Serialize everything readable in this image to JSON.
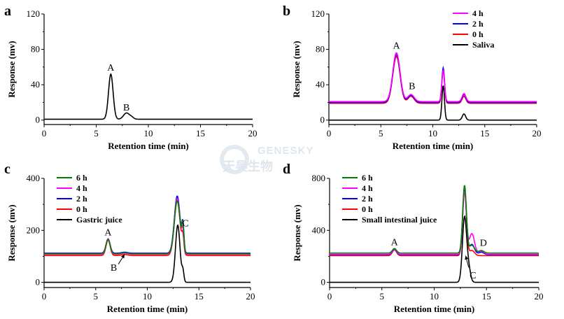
{
  "watermark": {
    "text_en": "GENESKY",
    "text_cn": "天昊生物"
  },
  "chart_data": [
    {
      "panel": "a",
      "type": "line",
      "xlabel": "Retention time (min)",
      "ylabel": "Response (mv)",
      "xlim": [
        0,
        20
      ],
      "ylim": [
        -5,
        120
      ],
      "xticks": [
        0,
        5,
        10,
        15,
        20
      ],
      "yticks": [
        0,
        40,
        80,
        120
      ],
      "legend": null,
      "series": [
        {
          "name": "",
          "color": "#000000",
          "baseline": 1,
          "peaks": [
            [
              6.4,
              51,
              0.22
            ],
            [
              7.9,
              7,
              0.28
            ],
            [
              8.4,
              2,
              0.2
            ]
          ]
        }
      ],
      "annotations": [
        {
          "text": "A",
          "x": 6.4,
          "y": 56
        },
        {
          "text": "B",
          "x": 7.9,
          "y": 11
        }
      ]
    },
    {
      "panel": "b",
      "type": "line",
      "xlabel": "Retention time (min)",
      "ylabel": "Response (mv)",
      "xlim": [
        0,
        20
      ],
      "ylim": [
        -5,
        120
      ],
      "xticks": [
        0,
        5,
        10,
        15,
        20
      ],
      "yticks": [
        0,
        40,
        80,
        120
      ],
      "legend": "top-right",
      "series": [
        {
          "name": "4 h",
          "color": "#ff00ff",
          "baseline": 21,
          "peaks": [
            [
              6.5,
              55,
              0.35
            ],
            [
              7.9,
              8,
              0.3
            ],
            [
              11.0,
              35,
              0.13
            ],
            [
              13.0,
              9,
              0.18
            ]
          ]
        },
        {
          "name": "2 h",
          "color": "#0000ff",
          "baseline": 20,
          "peaks": [
            [
              6.5,
              54,
              0.35
            ],
            [
              7.9,
              8,
              0.3
            ],
            [
              11.0,
              39,
              0.13
            ],
            [
              13.0,
              9,
              0.18
            ]
          ]
        },
        {
          "name": "0 h",
          "color": "#ff0000",
          "baseline": 19,
          "peaks": [
            [
              6.5,
              53,
              0.35
            ],
            [
              7.9,
              8,
              0.3
            ],
            [
              11.0,
              37,
              0.13
            ],
            [
              13.0,
              8,
              0.18
            ]
          ]
        },
        {
          "name": "Saliva",
          "color": "#000000",
          "baseline": 0,
          "peaks": [
            [
              11.0,
              39,
              0.12
            ],
            [
              13.0,
              7,
              0.16
            ]
          ]
        }
      ],
      "annotations": [
        {
          "text": "A",
          "x": 6.5,
          "y": 81
        },
        {
          "text": "B",
          "x": 8.0,
          "y": 35
        }
      ]
    },
    {
      "panel": "c",
      "type": "line",
      "xlabel": "Retention time (min)",
      "ylabel": "Response (mv)",
      "xlim": [
        0,
        20
      ],
      "ylim": [
        -20,
        400
      ],
      "xticks": [
        0,
        5,
        10,
        15,
        20
      ],
      "yticks": [
        0,
        200,
        400
      ],
      "legend": "top-left",
      "series": [
        {
          "name": "6 h",
          "color": "#008000",
          "baseline": 110,
          "peaks": [
            [
              6.2,
              55,
              0.2
            ],
            [
              7.8,
              4,
              0.3
            ],
            [
              12.9,
              205,
              0.28
            ],
            [
              13.45,
              95,
              0.1
            ]
          ]
        },
        {
          "name": "4 h",
          "color": "#ff00ff",
          "baseline": 108,
          "peaks": [
            [
              6.2,
              60,
              0.2
            ],
            [
              7.8,
              4,
              0.3
            ],
            [
              12.9,
              215,
              0.28
            ],
            [
              13.45,
              75,
              0.1
            ]
          ]
        },
        {
          "name": "2 h",
          "color": "#0000ff",
          "baseline": 112,
          "peaks": [
            [
              6.2,
              55,
              0.2
            ],
            [
              7.8,
              4,
              0.3
            ],
            [
              12.9,
              220,
              0.28
            ],
            [
              13.45,
              95,
              0.1
            ]
          ]
        },
        {
          "name": "0 h",
          "color": "#ff0000",
          "baseline": 103,
          "peaks": [
            [
              6.2,
              60,
              0.2
            ],
            [
              7.8,
              4,
              0.3
            ],
            [
              12.9,
              210,
              0.28
            ],
            [
              13.45,
              60,
              0.1
            ]
          ]
        },
        {
          "name": "Gastric juice",
          "color": "#000000",
          "baseline": 0,
          "peaks": [
            [
              12.95,
              220,
              0.22
            ],
            [
              13.45,
              40,
              0.1
            ]
          ]
        }
      ],
      "annotations": [
        {
          "text": "A",
          "x": 6.2,
          "y": 180
        },
        {
          "text": "B",
          "x": 6.75,
          "y": 45
        },
        {
          "text": "C",
          "x": 13.7,
          "y": 215
        }
      ],
      "arrows": [
        {
          "from": [
            7.2,
            70
          ],
          "to": [
            7.8,
            108
          ]
        }
      ]
    },
    {
      "panel": "d",
      "type": "line",
      "xlabel": "Retention time (min)",
      "ylabel": "Response (mv)",
      "xlim": [
        0,
        20
      ],
      "ylim": [
        -40,
        800
      ],
      "xticks": [
        0,
        5,
        10,
        15,
        20
      ],
      "yticks": [
        0,
        400,
        800
      ],
      "legend": "top-left",
      "series": [
        {
          "name": "6 h",
          "color": "#008000",
          "baseline": 225,
          "peaks": [
            [
              6.2,
              35,
              0.2
            ],
            [
              12.9,
              520,
              0.18
            ],
            [
              13.6,
              60,
              0.25
            ],
            [
              14.5,
              20,
              0.25
            ]
          ]
        },
        {
          "name": "4 h",
          "color": "#ff00ff",
          "baseline": 215,
          "peaks": [
            [
              6.2,
              40,
              0.2
            ],
            [
              12.9,
              480,
              0.18
            ],
            [
              13.6,
              160,
              0.25
            ],
            [
              14.5,
              25,
              0.25
            ]
          ]
        },
        {
          "name": "2 h",
          "color": "#0000ff",
          "baseline": 212,
          "peaks": [
            [
              6.2,
              40,
              0.2
            ],
            [
              12.9,
              500,
              0.18
            ],
            [
              13.6,
              80,
              0.25
            ],
            [
              14.5,
              20,
              0.25
            ]
          ]
        },
        {
          "name": "0 h",
          "color": "#ff0000",
          "baseline": 205,
          "peaks": [
            [
              6.2,
              45,
              0.2
            ],
            [
              12.9,
              500,
              0.18
            ],
            [
              13.6,
              40,
              0.25
            ]
          ]
        },
        {
          "name": "Small intestinal juice",
          "color": "#000000",
          "baseline": 0,
          "peaks": [
            [
              12.9,
              500,
              0.2
            ],
            [
              13.3,
              100,
              0.18
            ]
          ]
        }
      ],
      "annotations": [
        {
          "text": "A",
          "x": 6.2,
          "y": 285
        },
        {
          "text": "C",
          "x": 13.7,
          "y": 30
        },
        {
          "text": "D",
          "x": 14.7,
          "y": 280
        }
      ],
      "arrows": [
        {
          "from": [
            13.3,
            115
          ],
          "to": [
            13.0,
            205
          ]
        }
      ]
    }
  ]
}
